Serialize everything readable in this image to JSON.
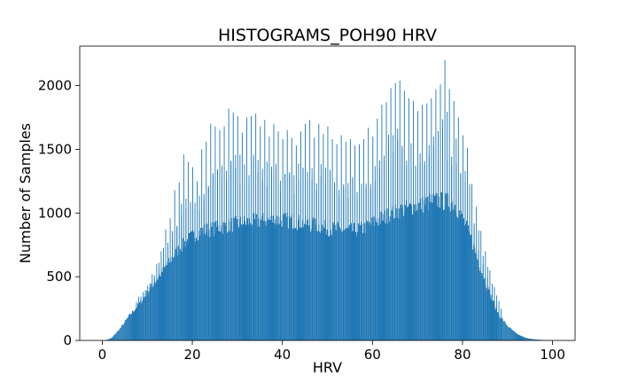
{
  "chart_data": {
    "type": "bar",
    "title": "HISTOGRAMS_POH90 HRV",
    "xlabel": "HRV",
    "ylabel": "Number of Samples",
    "xlim": [
      -5,
      105
    ],
    "ylim": [
      0,
      2310
    ],
    "x_ticks": [
      0,
      20,
      40,
      60,
      80,
      100
    ],
    "y_ticks": [
      0,
      500,
      1000,
      1500,
      2000
    ],
    "x_tick_labels": [
      "0",
      "20",
      "40",
      "60",
      "80",
      100
    ],
    "y_tick_labels": [
      "0",
      "500",
      "1000",
      "1500",
      "2000"
    ],
    "bar_color": "#1f77b4",
    "grid": false,
    "bin_width": 0.2,
    "series": [
      {
        "profile_x": [
          0,
          1,
          2,
          3,
          4,
          5,
          6,
          8,
          10,
          12,
          14,
          16,
          18,
          20,
          22,
          25,
          30,
          35,
          40,
          45,
          50,
          55,
          58,
          62,
          66,
          70,
          74,
          78,
          80,
          82,
          84,
          86,
          88,
          90,
          92,
          94,
          96,
          98,
          100
        ],
        "profile_y": [
          0,
          5,
          20,
          60,
          100,
          150,
          200,
          280,
          380,
          480,
          580,
          680,
          760,
          820,
          860,
          880,
          920,
          940,
          950,
          920,
          880,
          860,
          880,
          960,
          1020,
          1060,
          1100,
          1080,
          950,
          780,
          560,
          360,
          200,
          110,
          50,
          20,
          8,
          3,
          0
        ],
        "spike_x": [
          8,
          9,
          10,
          11,
          12,
          13,
          14,
          15,
          16,
          17,
          18,
          19,
          20,
          21,
          22,
          23,
          24,
          25,
          26,
          27,
          28,
          29,
          30,
          31,
          32,
          33,
          34,
          35,
          36,
          37,
          38,
          39,
          40,
          41,
          42,
          43,
          44,
          45,
          46,
          47,
          48,
          49,
          50,
          51,
          52,
          53,
          54,
          55,
          56,
          57,
          58,
          59,
          60,
          61,
          62,
          63,
          64,
          65,
          66,
          67,
          68,
          69,
          70,
          71,
          72,
          73,
          74,
          75,
          76,
          77,
          78,
          79,
          80,
          81,
          82,
          83,
          84,
          85,
          86,
          87,
          88
        ],
        "spike_y": [
          340,
          380,
          430,
          520,
          600,
          700,
          870,
          960,
          1180,
          1240,
          1460,
          1400,
          1360,
          1250,
          1500,
          1560,
          1700,
          1680,
          1650,
          1680,
          1820,
          1790,
          1760,
          1630,
          1750,
          1760,
          1780,
          1680,
          1730,
          1600,
          1700,
          1640,
          1580,
          1650,
          1590,
          1530,
          1640,
          1700,
          1730,
          1590,
          1700,
          1620,
          1680,
          1580,
          1540,
          1610,
          1560,
          1580,
          1530,
          1540,
          1580,
          1670,
          1600,
          1740,
          1850,
          1870,
          1980,
          2020,
          2040,
          1960,
          1900,
          1880,
          1800,
          1850,
          1860,
          1900,
          1970,
          2010,
          2200,
          1970,
          1880,
          1750,
          1610,
          1510,
          1230,
          1050,
          860,
          700,
          550,
          420,
          310
        ]
      }
    ]
  }
}
